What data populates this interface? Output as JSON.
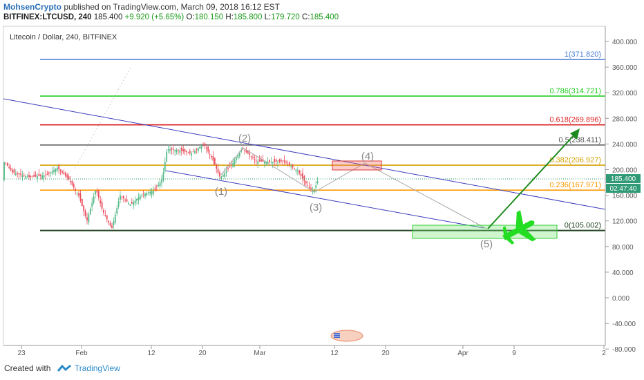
{
  "header": {
    "author": "MohsenCrypto",
    "published_text": "published on TradingView.com, March 09, 2018 16:12 EST",
    "symbol": "BITFINEX:LTCUSD, 240",
    "last": "185.400",
    "change": "+9.920 (+5.65%)",
    "o_label": "O:",
    "o_value": "180.150",
    "h_label": "H:",
    "h_value": "185.800",
    "l_label": "L:",
    "l_value": "179.720",
    "c_label": "C:",
    "c_value": "185.400"
  },
  "footer": {
    "created_with": "Created with",
    "brand": "TradingView"
  },
  "chart_data": {
    "type": "candlestick",
    "title": "Litecoin / Dollar, 240, BITFINEX",
    "y_ticks": [
      "400.000",
      "360.000",
      "320.000",
      "280.000",
      "240.000",
      "200.000",
      "160.000",
      "120.000",
      "80.000",
      "40.000",
      "0.000",
      "-40.000",
      "-80.000"
    ],
    "x_ticks": [
      "23",
      "Feb",
      "12",
      "20",
      "Mar",
      "12",
      "20",
      "Apr",
      "9",
      "2"
    ],
    "y_range": [
      -80,
      400
    ],
    "price_label": "185.400",
    "countdown_label": "02:47:40",
    "fib_levels": [
      {
        "label": "1(371.820)",
        "value": 371.82,
        "color": "#4a7fd4"
      },
      {
        "label": "0.786(314.721)",
        "value": 314.721,
        "color": "#22cc22"
      },
      {
        "label": "0.618(269.896)",
        "value": 269.896,
        "color": "#dd2222"
      },
      {
        "label": "0.5(238.411)",
        "value": 238.411,
        "color": "#555555"
      },
      {
        "label": "0.382(206.927)",
        "value": 206.927,
        "color": "#d4a000"
      },
      {
        "label": "0.236(167.971)",
        "value": 167.971,
        "color": "#ff9900"
      },
      {
        "label": "0(105.002)",
        "value": 105.002,
        "color": "#224422"
      }
    ],
    "wave_labels": [
      "(1)",
      "(2)",
      "(3)",
      "(4)",
      "(5)"
    ],
    "ohlc": {
      "open": 180.15,
      "high": 185.8,
      "low": 179.72,
      "close": 185.4
    },
    "colors": {
      "up": "#53b987",
      "down": "#eb4d5c",
      "channel": "#3b3bbd",
      "target_arrow": "#1c8a1c",
      "zone": "#33cc33"
    }
  }
}
